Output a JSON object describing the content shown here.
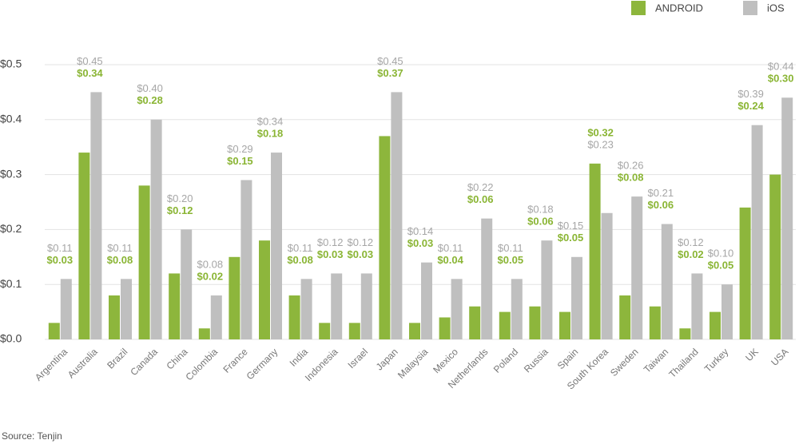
{
  "chart_data": {
    "type": "bar",
    "categories": [
      "Argentina",
      "Australia",
      "Brazil",
      "Canada",
      "China",
      "Colombia",
      "France",
      "Germany",
      "India",
      "Indonesia",
      "Israel",
      "Japan",
      "Malaysia",
      "Mexico",
      "Netherlands",
      "Poland",
      "Russia",
      "Spain",
      "South Korea",
      "Sweden",
      "Taiwan",
      "Thailand",
      "Turkey",
      "UK",
      "USA"
    ],
    "series": [
      {
        "name": "ANDROID",
        "color": "#8db63c",
        "label_color": "#8ab534",
        "values": [
          0.03,
          0.34,
          0.08,
          0.28,
          0.12,
          0.02,
          0.15,
          0.18,
          0.08,
          0.03,
          0.03,
          0.37,
          0.03,
          0.04,
          0.06,
          0.05,
          0.06,
          0.05,
          0.32,
          0.08,
          0.06,
          0.02,
          0.05,
          0.24,
          0.3
        ],
        "value_labels": [
          "$0.03",
          "$0.34",
          "$0.08",
          "$0.28",
          "$0.12",
          "$0.02",
          "$0.15",
          "$0.18",
          "$0.08",
          "$0.03",
          "$0.03",
          "$0.37",
          "$0.03",
          "$0.04",
          "$0.06",
          "$0.05",
          "$0.06",
          "$0.05",
          "$0.32",
          "$0.08",
          "$0.06",
          "$0.02",
          "$0.05",
          "$0.24",
          "$0.30"
        ]
      },
      {
        "name": "iOS",
        "color": "#bfbfbf",
        "label_color": "#a6a6a6",
        "values": [
          0.11,
          0.45,
          0.11,
          0.4,
          0.2,
          0.08,
          0.29,
          0.34,
          0.11,
          0.12,
          0.12,
          0.45,
          0.14,
          0.11,
          0.22,
          0.11,
          0.18,
          0.15,
          0.23,
          0.26,
          0.21,
          0.12,
          0.1,
          0.39,
          0.44
        ],
        "value_labels": [
          "$0.11",
          "$0.45",
          "$0.11",
          "$0.40",
          "$0.20",
          "$0.08",
          "$0.29",
          "$0.34",
          "$0.11",
          "$0.12",
          "$0.12",
          "$0.45",
          "$0.14",
          "$0.11",
          "$0.22",
          "$0.11",
          "$0.18",
          "$0.15",
          "$0.23",
          "$0.26",
          "$0.21",
          "$0.12",
          "$0.10",
          "$0.39",
          "$0.44"
        ]
      }
    ],
    "ylim": [
      0,
      0.5
    ],
    "yticks": [
      {
        "value": 0,
        "label": "$0.0"
      },
      {
        "value": 0.1,
        "label": "$0.1"
      },
      {
        "value": 0.2,
        "label": "$0.2"
      },
      {
        "value": 0.3,
        "label": "$0.3"
      },
      {
        "value": 0.4,
        "label": "$0.4"
      },
      {
        "value": 0.5,
        "label": "$0.5"
      }
    ],
    "grid": true,
    "legend": "top-right",
    "source": "Source: Tenjin"
  }
}
